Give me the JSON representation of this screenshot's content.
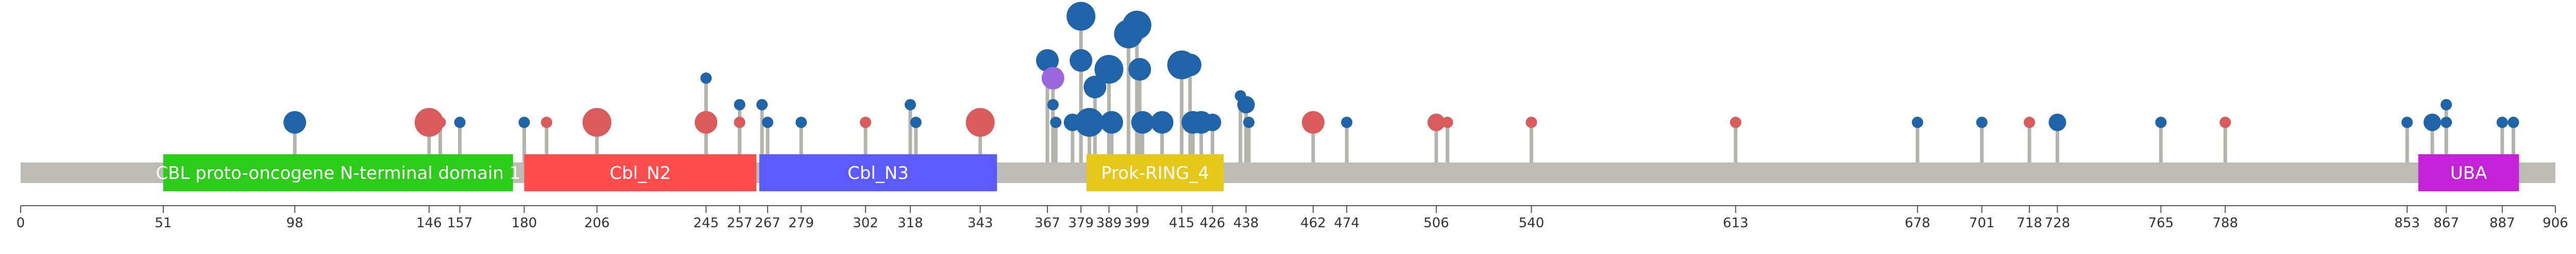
{
  "chart_data": {
    "type": "lollipop",
    "protein_length": 906,
    "domains": [
      {
        "name": "CBL proto-oncogene N-terminal domain 1",
        "start": 51,
        "end": 176,
        "color": "#2ecc1a"
      },
      {
        "name": "Cbl_N2",
        "start": 180,
        "end": 263,
        "color": "#ff4d4d"
      },
      {
        "name": "Cbl_N3",
        "start": 264,
        "end": 349,
        "color": "#5b5bff"
      },
      {
        "name": "Prok-RING_4",
        "start": 381,
        "end": 430,
        "color": "#e6c81a"
      },
      {
        "name": "UBA",
        "start": 857,
        "end": 893,
        "color": "#c322d6"
      }
    ],
    "axis_ticks": [
      0,
      51,
      98,
      146,
      157,
      180,
      206,
      245,
      257,
      267,
      279,
      302,
      318,
      343,
      367,
      379,
      389,
      399,
      415,
      426,
      438,
      462,
      474,
      506,
      540,
      613,
      678,
      701,
      718,
      728,
      765,
      788,
      853,
      867,
      887,
      906
    ],
    "mutations": [
      {
        "pos": 98,
        "level": 1,
        "size": 2,
        "color": "#1f63a8"
      },
      {
        "pos": 146,
        "level": 1,
        "size": 3,
        "color": "#d95b5b"
      },
      {
        "pos": 150,
        "level": 1,
        "size": 0,
        "color": "#d95b5b"
      },
      {
        "pos": 157,
        "level": 1,
        "size": 0,
        "color": "#1f63a8"
      },
      {
        "pos": 180,
        "level": 1,
        "size": 0,
        "color": "#1f63a8"
      },
      {
        "pos": 188,
        "level": 1,
        "size": 0,
        "color": "#d95b5b"
      },
      {
        "pos": 206,
        "level": 1,
        "size": 3,
        "color": "#d95b5b"
      },
      {
        "pos": 245,
        "level": 1,
        "size": 2,
        "color": "#d95b5b"
      },
      {
        "pos": 245,
        "level": 2,
        "size": 0,
        "color": "#1f63a8"
      },
      {
        "pos": 257,
        "level": 1,
        "size": 0,
        "color": "#d95b5b"
      },
      {
        "pos": 257,
        "level": 1.4,
        "size": 0,
        "color": "#1f63a8"
      },
      {
        "pos": 265,
        "level": 1.4,
        "size": 0,
        "color": "#1f63a8"
      },
      {
        "pos": 267,
        "level": 1,
        "size": 0,
        "color": "#1f63a8"
      },
      {
        "pos": 279,
        "level": 1,
        "size": 0,
        "color": "#1f63a8"
      },
      {
        "pos": 302,
        "level": 1,
        "size": 0,
        "color": "#d95b5b"
      },
      {
        "pos": 318,
        "level": 1.4,
        "size": 0,
        "color": "#1f63a8"
      },
      {
        "pos": 320,
        "level": 1,
        "size": 0,
        "color": "#1f63a8"
      },
      {
        "pos": 343,
        "level": 1,
        "size": 3,
        "color": "#d95b5b"
      },
      {
        "pos": 367,
        "level": 2.4,
        "size": 2,
        "color": "#1f63a8"
      },
      {
        "pos": 369,
        "level": 1.4,
        "size": 0,
        "color": "#1f63a8"
      },
      {
        "pos": 370,
        "level": 1,
        "size": 0,
        "color": "#1f63a8"
      },
      {
        "pos": 369,
        "level": 2,
        "size": 2,
        "color": "#9966dd"
      },
      {
        "pos": 376,
        "level": 1,
        "size": 1,
        "color": "#1f63a8"
      },
      {
        "pos": 379,
        "level": 3.4,
        "size": 3,
        "color": "#1f63a8"
      },
      {
        "pos": 379,
        "level": 2.4,
        "size": 2,
        "color": "#1f63a8"
      },
      {
        "pos": 382,
        "level": 1,
        "size": 3,
        "color": "#1f63a8"
      },
      {
        "pos": 384,
        "level": 1.8,
        "size": 2,
        "color": "#1f63a8"
      },
      {
        "pos": 389,
        "level": 2.2,
        "size": 3,
        "color": "#1f63a8"
      },
      {
        "pos": 390,
        "level": 1,
        "size": 2,
        "color": "#1f63a8"
      },
      {
        "pos": 396,
        "level": 3,
        "size": 3,
        "color": "#1f63a8"
      },
      {
        "pos": 399,
        "level": 3.2,
        "size": 3,
        "color": "#1f63a8"
      },
      {
        "pos": 400,
        "level": 2.2,
        "size": 2,
        "color": "#1f63a8"
      },
      {
        "pos": 401,
        "level": 1,
        "size": 2,
        "color": "#1f63a8"
      },
      {
        "pos": 408,
        "level": 1,
        "size": 2,
        "color": "#1f63a8"
      },
      {
        "pos": 415,
        "level": 2.3,
        "size": 3,
        "color": "#1f63a8"
      },
      {
        "pos": 418,
        "level": 2.3,
        "size": 2,
        "color": "#1f63a8"
      },
      {
        "pos": 419,
        "level": 1,
        "size": 2,
        "color": "#1f63a8"
      },
      {
        "pos": 422,
        "level": 1,
        "size": 2,
        "color": "#1f63a8"
      },
      {
        "pos": 426,
        "level": 1,
        "size": 1,
        "color": "#1f63a8"
      },
      {
        "pos": 436,
        "level": 1.6,
        "size": 0,
        "color": "#1f63a8"
      },
      {
        "pos": 438,
        "level": 1.4,
        "size": 1,
        "color": "#1f63a8"
      },
      {
        "pos": 439,
        "level": 1,
        "size": 0,
        "color": "#1f63a8"
      },
      {
        "pos": 462,
        "level": 1,
        "size": 2,
        "color": "#d95b5b"
      },
      {
        "pos": 474,
        "level": 1,
        "size": 0,
        "color": "#1f63a8"
      },
      {
        "pos": 506,
        "level": 1,
        "size": 1,
        "color": "#d95b5b"
      },
      {
        "pos": 510,
        "level": 1,
        "size": 0,
        "color": "#d95b5b"
      },
      {
        "pos": 540,
        "level": 1,
        "size": 0,
        "color": "#d95b5b"
      },
      {
        "pos": 613,
        "level": 1,
        "size": 0,
        "color": "#d95b5b"
      },
      {
        "pos": 678,
        "level": 1,
        "size": 0,
        "color": "#1f63a8"
      },
      {
        "pos": 701,
        "level": 1,
        "size": 0,
        "color": "#1f63a8"
      },
      {
        "pos": 718,
        "level": 1,
        "size": 0,
        "color": "#d95b5b"
      },
      {
        "pos": 728,
        "level": 1,
        "size": 1,
        "color": "#1f63a8"
      },
      {
        "pos": 765,
        "level": 1,
        "size": 0,
        "color": "#1f63a8"
      },
      {
        "pos": 788,
        "level": 1,
        "size": 0,
        "color": "#d95b5b"
      },
      {
        "pos": 853,
        "level": 1,
        "size": 0,
        "color": "#1f63a8"
      },
      {
        "pos": 862,
        "level": 1,
        "size": 1,
        "color": "#1f63a8"
      },
      {
        "pos": 867,
        "level": 1.4,
        "size": 0,
        "color": "#1f63a8"
      },
      {
        "pos": 867,
        "level": 1,
        "size": 0,
        "color": "#1f63a8"
      },
      {
        "pos": 887,
        "level": 1,
        "size": 0,
        "color": "#1f63a8"
      },
      {
        "pos": 891,
        "level": 1,
        "size": 0,
        "color": "#1f63a8"
      }
    ]
  }
}
